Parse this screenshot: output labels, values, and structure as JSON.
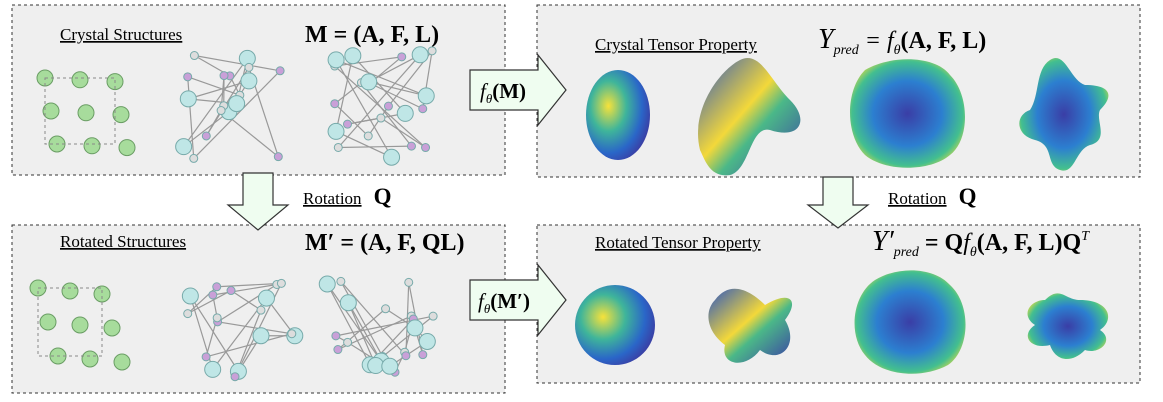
{
  "panels": [
    {
      "title": "Crystal Structures",
      "formula": {
        "lhs": "M",
        "rhs": " = (A, F, L)"
      }
    },
    {
      "title": "Rotated Structures",
      "formula": {
        "lhs": "M′",
        "rhs": " = (A, F, QL)"
      }
    },
    {
      "title": "Crystal Tensor Property",
      "formula": {
        "symbol": "Y",
        "subscript": "pred",
        "eq": " = ",
        "f": "f",
        "f_sub": "θ",
        "args": "(A, F, L)"
      }
    },
    {
      "title": "Rotated Tensor Property",
      "formula": {
        "symbol": "Y′",
        "subscript": "pred",
        "eq": " = Q",
        "f": "f",
        "f_sub": "θ",
        "args": "(A, F, L)Q",
        "sup": "T"
      }
    }
  ],
  "rotations": [
    {
      "label": "Rotation",
      "symbol": "Q"
    },
    {
      "label": "Rotation",
      "symbol": "Q"
    }
  ],
  "maps": [
    {
      "f": "f",
      "sub": "θ",
      "arg": "(M)"
    },
    {
      "f": "f",
      "sub": "θ",
      "arg": "(M′)"
    }
  ]
}
